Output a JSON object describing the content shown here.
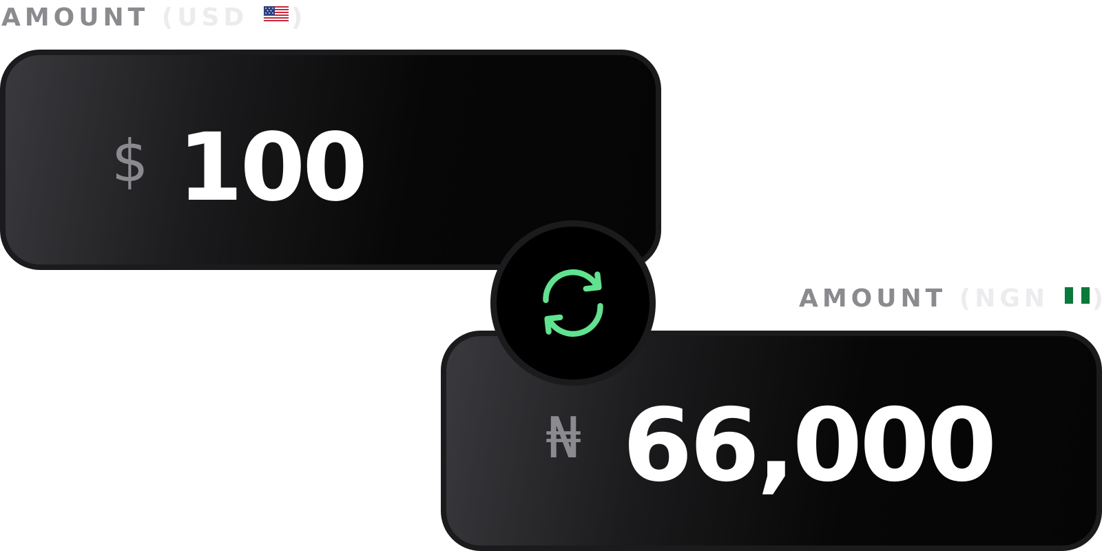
{
  "from": {
    "label": "AMOUNT",
    "currency": "USD",
    "symbol": "$",
    "amount": "100"
  },
  "to": {
    "label": "AMOUNT",
    "currency": "NGN",
    "symbol": "₦",
    "amount": "66,000"
  },
  "colors": {
    "accent": "#5fe38f",
    "label": "#8a8a8f",
    "card_border": "#1b1b1d"
  },
  "icons": {
    "swap": "swap-arrows-icon",
    "from_flag": "us-flag-icon",
    "to_flag": "nigeria-flag-icon"
  }
}
